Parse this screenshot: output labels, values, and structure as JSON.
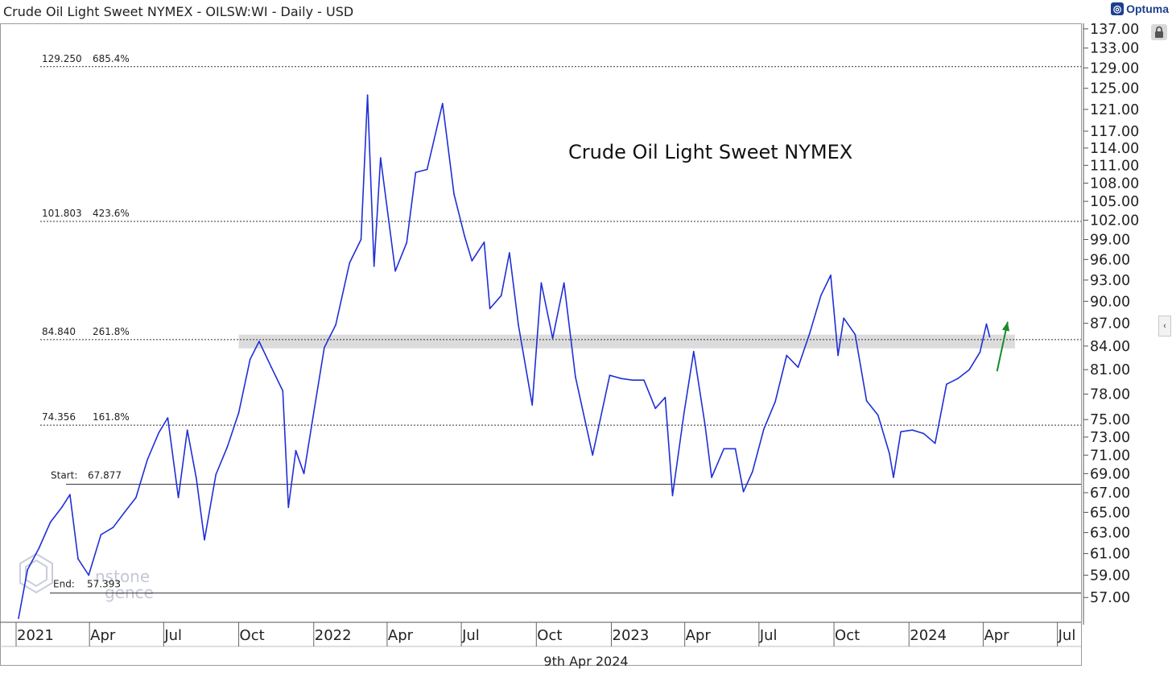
{
  "header": {
    "title": "Crude Oil Light Sweet NYMEX - OILSW:WI - Daily - USD",
    "brand": "Optuma"
  },
  "footer": {
    "date": "9th Apr 2024"
  },
  "watermark": {
    "line1": "nstone",
    "line2": "gence"
  },
  "colors": {
    "price": "#1f2fd6",
    "arrow": "#1a8a2a",
    "zone": "#d8d8d8",
    "axis": "#555555"
  },
  "icons": {
    "lock": "lock-icon",
    "collapse": "chevron-left-icon",
    "brand": "optuma-logo-icon"
  },
  "chart_data": {
    "type": "line",
    "title": "Crude Oil Light Sweet NYMEX",
    "xlabel": "",
    "ylabel": "",
    "ylim": [
      55,
      138
    ],
    "y_scale": "log",
    "grid": false,
    "y_ticks": [
      57,
      59,
      61,
      63,
      65,
      67,
      69,
      71,
      73,
      75,
      78,
      81,
      84,
      87,
      90,
      93,
      96,
      99,
      102,
      105,
      108,
      111,
      114,
      117,
      121,
      125,
      129,
      133,
      137
    ],
    "y_tick_labels": [
      "57.00",
      "59.00",
      "61.00",
      "63.00",
      "65.00",
      "67.00",
      "69.00",
      "71.00",
      "73.00",
      "75.00",
      "78.00",
      "81.00",
      "84.00",
      "87.00",
      "90.00",
      "93.00",
      "96.00",
      "99.00",
      "102.00",
      "105.00",
      "108.00",
      "111.00",
      "114.00",
      "117.00",
      "121.00",
      "125.00",
      "129.00",
      "133.00",
      "137.00"
    ],
    "x_ticks": [
      {
        "label": "2021",
        "date": "2021-01-01"
      },
      {
        "label": "Apr",
        "date": "2021-04-01"
      },
      {
        "label": "Jul",
        "date": "2021-07-01"
      },
      {
        "label": "Oct",
        "date": "2021-10-01"
      },
      {
        "label": "2022",
        "date": "2022-01-01"
      },
      {
        "label": "Apr",
        "date": "2022-04-01"
      },
      {
        "label": "Jul",
        "date": "2022-07-01"
      },
      {
        "label": "Oct",
        "date": "2022-10-01"
      },
      {
        "label": "2023",
        "date": "2023-01-01"
      },
      {
        "label": "Apr",
        "date": "2023-04-01"
      },
      {
        "label": "Jul",
        "date": "2023-07-01"
      },
      {
        "label": "Oct",
        "date": "2023-10-01"
      },
      {
        "label": "2024",
        "date": "2024-01-01"
      },
      {
        "label": "Apr",
        "date": "2024-04-01"
      },
      {
        "label": "Jul",
        "date": "2024-07-01"
      }
    ],
    "x_range": [
      "2021-01-01",
      "2024-07-30"
    ],
    "fib_levels": [
      {
        "value": 129.25,
        "text": "129.250",
        "pct": "685.4%"
      },
      {
        "value": 101.803,
        "text": "101.803",
        "pct": "423.6%"
      },
      {
        "value": 84.84,
        "text": "84.840",
        "pct": "261.8%"
      },
      {
        "value": 74.356,
        "text": "74.356",
        "pct": "161.8%"
      }
    ],
    "start_level": {
      "label": "Start:",
      "value": 67.877,
      "text": "67.877"
    },
    "end_level": {
      "label": "End:",
      "value": 57.393,
      "text": "57.393"
    },
    "resistance_zone": {
      "low": 83.7,
      "high": 85.5,
      "from": "2021-10-01",
      "to": "2024-05-10"
    },
    "arrow": {
      "from_date": "2024-04-18",
      "from_value": 80.8,
      "to_date": "2024-05-01",
      "to_value": 87.2
    },
    "series": [
      {
        "points": [
          [
            "2021-01-04",
            55.2
          ],
          [
            "2021-01-15",
            59.5
          ],
          [
            "2021-01-29",
            61.5
          ],
          [
            "2021-02-12",
            64.0
          ],
          [
            "2021-02-26",
            65.5
          ],
          [
            "2021-03-08",
            66.8
          ],
          [
            "2021-03-18",
            60.5
          ],
          [
            "2021-03-31",
            59.0
          ],
          [
            "2021-04-15",
            62.8
          ],
          [
            "2021-04-30",
            63.5
          ],
          [
            "2021-05-14",
            65.0
          ],
          [
            "2021-05-28",
            66.5
          ],
          [
            "2021-06-11",
            70.5
          ],
          [
            "2021-06-25",
            73.5
          ],
          [
            "2021-07-06",
            75.2
          ],
          [
            "2021-07-19",
            66.5
          ],
          [
            "2021-07-30",
            73.8
          ],
          [
            "2021-08-10",
            68.5
          ],
          [
            "2021-08-20",
            62.3
          ],
          [
            "2021-09-03",
            68.9
          ],
          [
            "2021-09-17",
            71.9
          ],
          [
            "2021-10-01",
            75.8
          ],
          [
            "2021-10-15",
            82.3
          ],
          [
            "2021-10-26",
            84.6
          ],
          [
            "2021-11-10",
            81.3
          ],
          [
            "2021-11-24",
            78.4
          ],
          [
            "2021-12-01",
            65.5
          ],
          [
            "2021-12-10",
            71.5
          ],
          [
            "2021-12-20",
            69.0
          ],
          [
            "2021-12-31",
            75.2
          ],
          [
            "2022-01-14",
            83.8
          ],
          [
            "2022-01-28",
            86.8
          ],
          [
            "2022-02-14",
            95.5
          ],
          [
            "2022-02-28",
            99.0
          ],
          [
            "2022-03-08",
            123.7
          ],
          [
            "2022-03-16",
            95.0
          ],
          [
            "2022-03-24",
            112.3
          ],
          [
            "2022-04-11",
            94.3
          ],
          [
            "2022-04-25",
            98.5
          ],
          [
            "2022-05-06",
            109.8
          ],
          [
            "2022-05-20",
            110.3
          ],
          [
            "2022-06-08",
            122.1
          ],
          [
            "2022-06-22",
            106.2
          ],
          [
            "2022-07-05",
            99.5
          ],
          [
            "2022-07-14",
            95.8
          ],
          [
            "2022-07-29",
            98.6
          ],
          [
            "2022-08-05",
            89.0
          ],
          [
            "2022-08-19",
            90.8
          ],
          [
            "2022-08-29",
            97.0
          ],
          [
            "2022-09-09",
            86.8
          ],
          [
            "2022-09-26",
            76.7
          ],
          [
            "2022-10-07",
            92.6
          ],
          [
            "2022-10-21",
            85.0
          ],
          [
            "2022-11-04",
            92.6
          ],
          [
            "2022-11-18",
            80.1
          ],
          [
            "2022-12-09",
            71.0
          ],
          [
            "2022-12-30",
            80.3
          ],
          [
            "2023-01-13",
            79.9
          ],
          [
            "2023-01-27",
            79.7
          ],
          [
            "2023-02-10",
            79.7
          ],
          [
            "2023-02-24",
            76.3
          ],
          [
            "2023-03-08",
            77.6
          ],
          [
            "2023-03-17",
            66.7
          ],
          [
            "2023-03-31",
            75.7
          ],
          [
            "2023-04-12",
            83.3
          ],
          [
            "2023-04-26",
            74.3
          ],
          [
            "2023-05-04",
            68.6
          ],
          [
            "2023-05-19",
            71.7
          ],
          [
            "2023-06-02",
            71.7
          ],
          [
            "2023-06-12",
            67.1
          ],
          [
            "2023-06-23",
            69.2
          ],
          [
            "2023-07-07",
            73.9
          ],
          [
            "2023-07-21",
            77.1
          ],
          [
            "2023-08-04",
            82.8
          ],
          [
            "2023-08-18",
            81.3
          ],
          [
            "2023-09-01",
            85.6
          ],
          [
            "2023-09-15",
            90.8
          ],
          [
            "2023-09-27",
            93.7
          ],
          [
            "2023-10-06",
            82.8
          ],
          [
            "2023-10-13",
            87.7
          ],
          [
            "2023-10-27",
            85.5
          ],
          [
            "2023-11-10",
            77.2
          ],
          [
            "2023-11-24",
            75.5
          ],
          [
            "2023-12-08",
            71.2
          ],
          [
            "2023-12-13",
            68.6
          ],
          [
            "2023-12-22",
            73.6
          ],
          [
            "2024-01-05",
            73.8
          ],
          [
            "2024-01-19",
            73.4
          ],
          [
            "2024-02-02",
            72.3
          ],
          [
            "2024-02-16",
            79.2
          ],
          [
            "2024-03-01",
            79.9
          ],
          [
            "2024-03-15",
            81.0
          ],
          [
            "2024-03-28",
            83.2
          ],
          [
            "2024-04-05",
            86.9
          ],
          [
            "2024-04-09",
            85.2
          ]
        ]
      }
    ]
  }
}
